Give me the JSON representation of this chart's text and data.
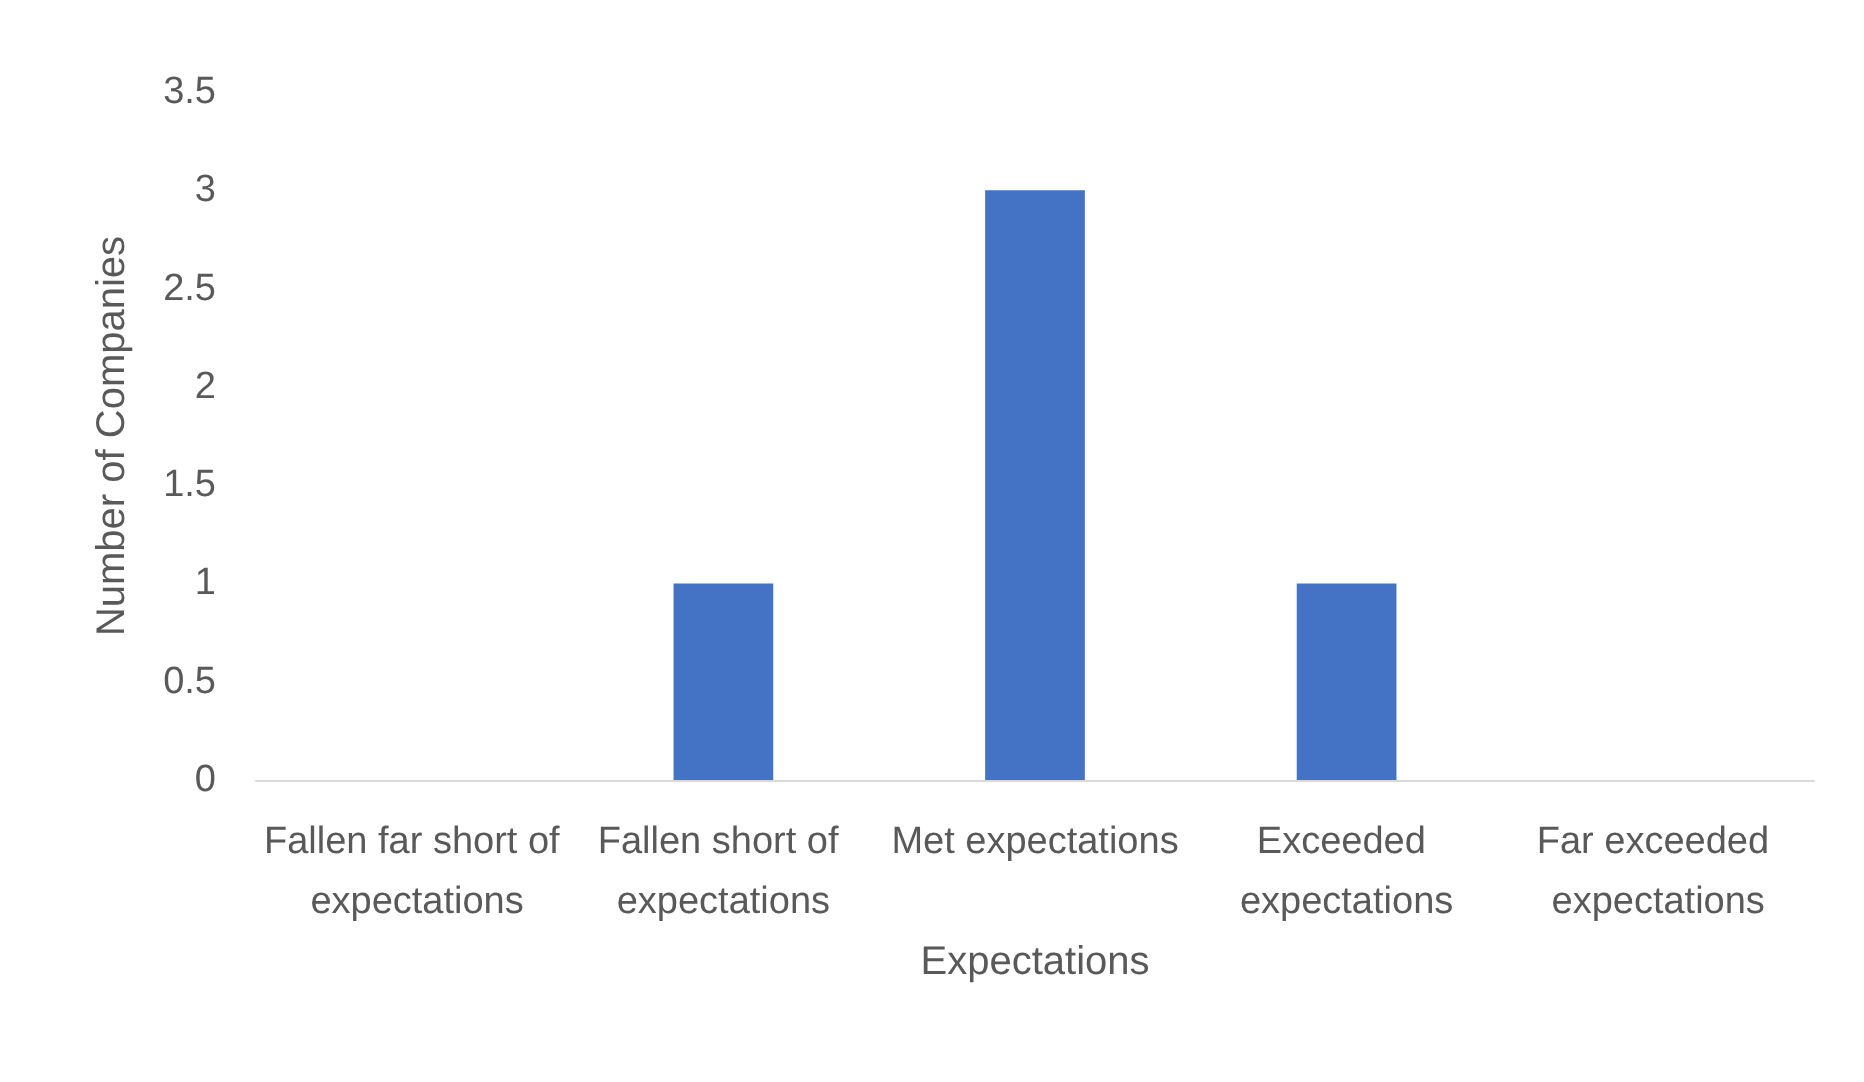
{
  "chart_data": {
    "type": "bar",
    "xlabel": "Expectations",
    "ylabel": "Number of Companies",
    "categories": [
      "Fallen far short of expectations",
      "Fallen short of expectations",
      "Met expectations",
      "Exceeded expectations",
      "Far exceeded expectations"
    ],
    "values": [
      0,
      1,
      3,
      1,
      0
    ],
    "color": "#4472c4",
    "ylim": [
      0,
      3.5
    ],
    "yticks": [
      0,
      0.5,
      1,
      1.5,
      2,
      2.5,
      3,
      3.5
    ],
    "grid": false
  }
}
